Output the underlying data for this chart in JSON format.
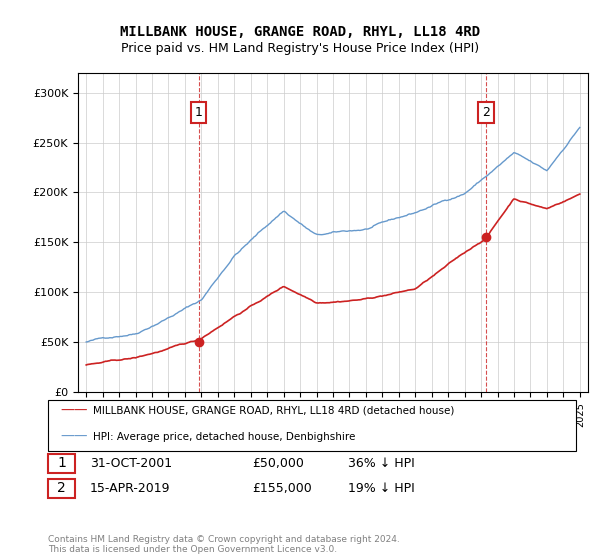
{
  "title": "MILLBANK HOUSE, GRANGE ROAD, RHYL, LL18 4RD",
  "subtitle": "Price paid vs. HM Land Registry's House Price Index (HPI)",
  "legend_label_red": "MILLBANK HOUSE, GRANGE ROAD, RHYL, LL18 4RD (detached house)",
  "legend_label_blue": "HPI: Average price, detached house, Denbighshire",
  "annotation1": {
    "label": "1",
    "date": "31-OCT-2001",
    "price": "£50,000",
    "pct": "36% ↓ HPI"
  },
  "annotation2": {
    "label": "2",
    "date": "15-APR-2019",
    "price": "£155,000",
    "pct": "19% ↓ HPI"
  },
  "vline1_x": 2001.83,
  "vline2_x": 2019.29,
  "sale1_x": 2001.83,
  "sale1_y": 50000,
  "sale2_x": 2019.29,
  "sale2_y": 155000,
  "ylim": [
    0,
    320000
  ],
  "xlim": [
    1994.5,
    2025.5
  ],
  "yticks": [
    0,
    50000,
    100000,
    150000,
    200000,
    250000,
    300000
  ],
  "footer": "Contains HM Land Registry data © Crown copyright and database right 2024.\nThis data is licensed under the Open Government Licence v3.0.",
  "background_color": "#ffffff",
  "plot_bg_color": "#ffffff",
  "grid_color": "#cccccc",
  "red_color": "#cc2222",
  "blue_color": "#6699cc"
}
